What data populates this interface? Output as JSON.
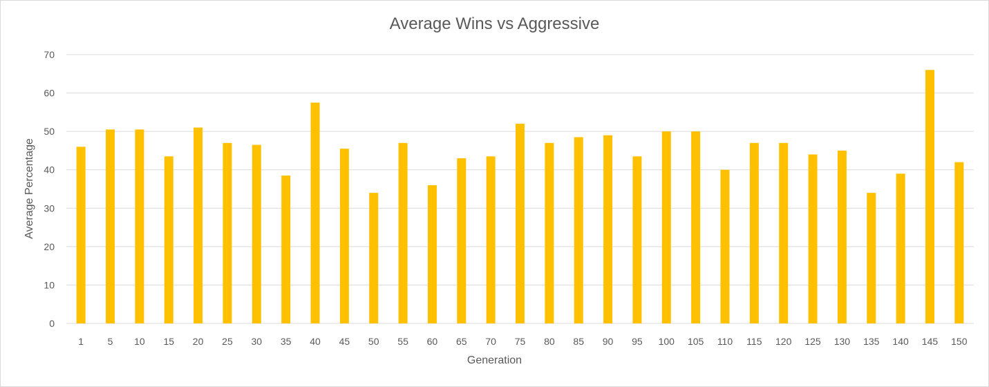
{
  "chart_data": {
    "type": "bar",
    "title": "Average Wins vs Aggressive",
    "xlabel": "Generation",
    "ylabel": "Average Percentage",
    "ylim": [
      0,
      70
    ],
    "yticks": [
      0,
      10,
      20,
      30,
      40,
      50,
      60,
      70
    ],
    "grid": true,
    "legend": "none",
    "bar_color": "#FFC000",
    "categories": [
      "1",
      "5",
      "10",
      "15",
      "20",
      "25",
      "30",
      "35",
      "40",
      "45",
      "50",
      "55",
      "60",
      "65",
      "70",
      "75",
      "80",
      "85",
      "90",
      "95",
      "100",
      "105",
      "110",
      "115",
      "120",
      "125",
      "130",
      "135",
      "140",
      "145",
      "150"
    ],
    "values": [
      46,
      50.5,
      50.5,
      43.5,
      51,
      47,
      46.5,
      38.5,
      57.5,
      45.5,
      34,
      47,
      36,
      43,
      43.5,
      52,
      47,
      48.5,
      49,
      43.5,
      50,
      50,
      40,
      47,
      47,
      44,
      45,
      34,
      39,
      66,
      42
    ]
  }
}
